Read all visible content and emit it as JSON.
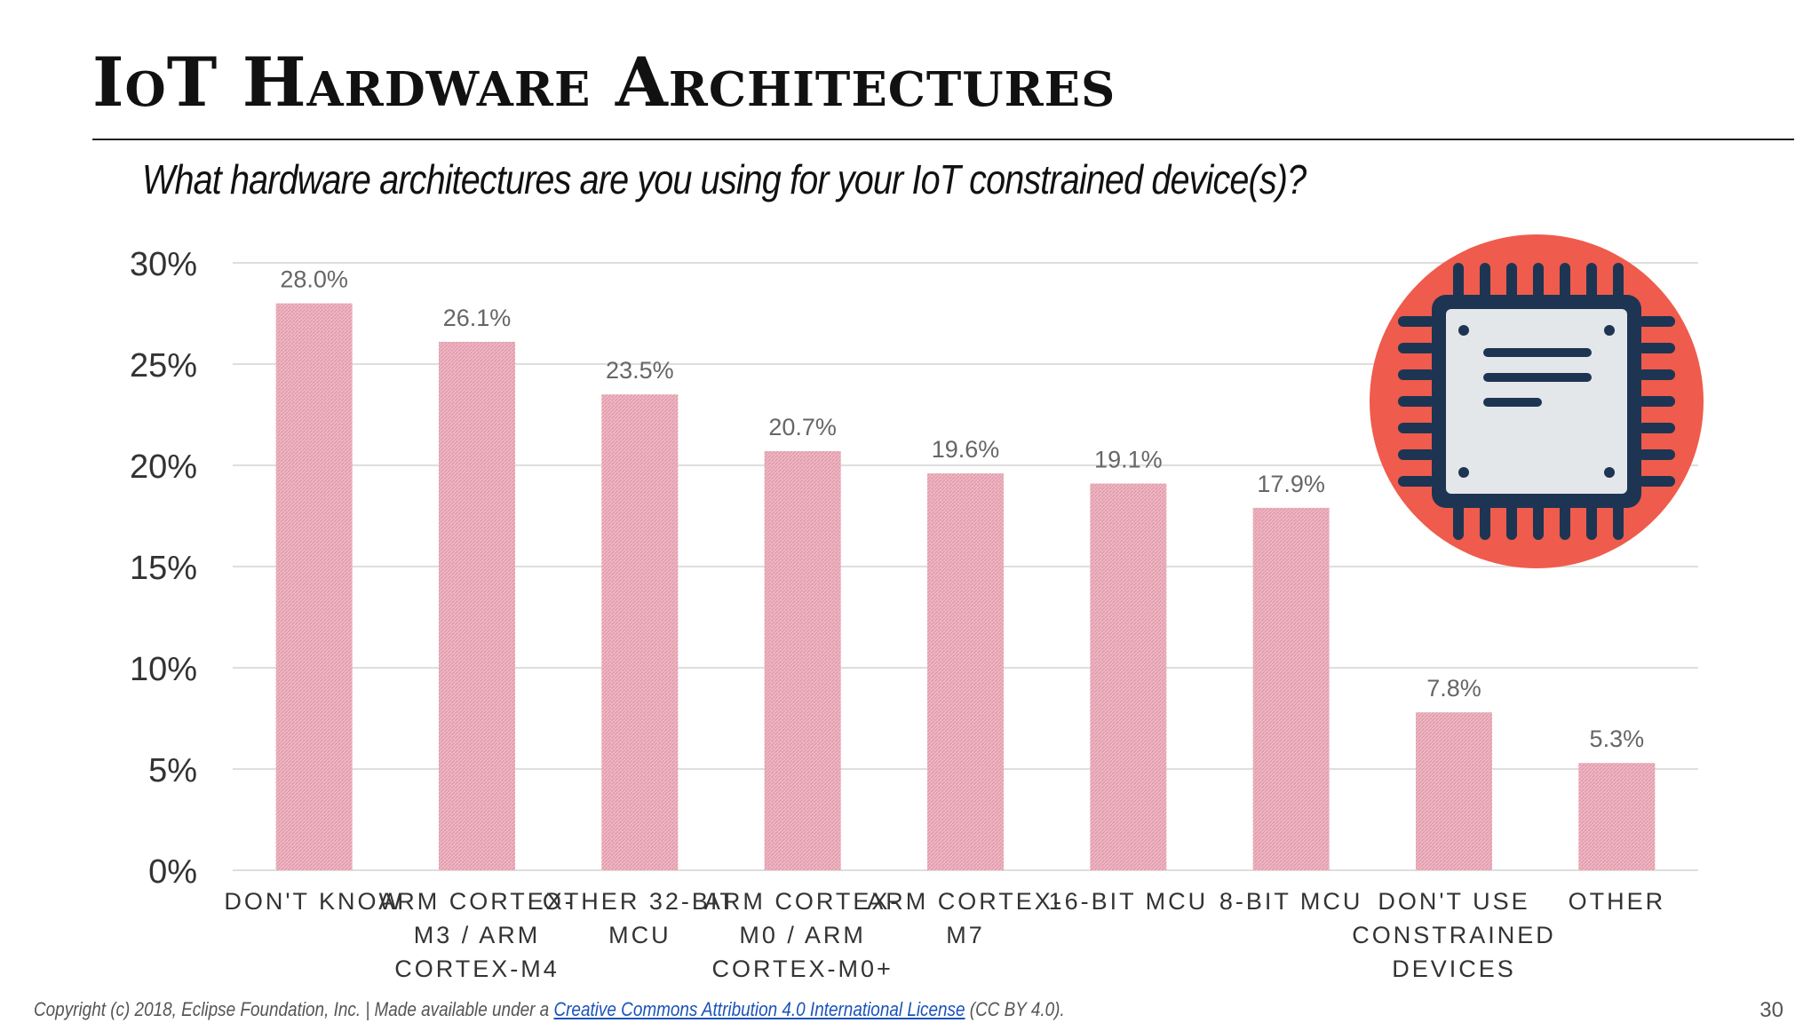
{
  "slide": {
    "title": "IoT Hardware Architectures",
    "subtitle": "What hardware architectures are you using for your IoT constrained device(s)?",
    "page_number": "30"
  },
  "footer": {
    "prefix": "Copyright (c) 2018, Eclipse Foundation, Inc. | Made available under a ",
    "link_text": "Creative Commons Attribution 4.0 International License",
    "suffix": " (CC BY 4.0)."
  },
  "icon": {
    "name": "microchip-icon",
    "circle_color": "#ef5b4c",
    "chip_color": "#1d3553",
    "die_color": "#e4e7ea"
  },
  "colors": {
    "bar": "#efb8c4",
    "bar_hatch": "#e09aaa",
    "grid": "#dedede",
    "axis_text": "#333333",
    "label_text": "#666666"
  },
  "chart_data": {
    "type": "bar",
    "categories": [
      [
        "DON'T KNOW"
      ],
      [
        "ARM CORTEX-",
        "M3 / ARM",
        "CORTEX-M4"
      ],
      [
        "OTHER 32-BIT",
        "MCU"
      ],
      [
        "ARM CORTEX-",
        "M0 / ARM",
        "CORTEX-M0+"
      ],
      [
        "ARM CORTEX-",
        "M7"
      ],
      [
        "16-BIT MCU"
      ],
      [
        "8-BIT MCU"
      ],
      [
        "DON'T USE",
        "CONSTRAINED",
        "DEVICES"
      ],
      [
        "OTHER"
      ]
    ],
    "values": [
      28.0,
      26.1,
      23.5,
      20.7,
      19.6,
      19.1,
      17.9,
      7.8,
      5.3
    ],
    "data_labels": [
      "28.0%",
      "26.1%",
      "23.5%",
      "20.7%",
      "19.6%",
      "19.1%",
      "17.9%",
      "7.8%",
      "5.3%"
    ],
    "yticks": [
      0,
      5,
      10,
      15,
      20,
      25,
      30
    ],
    "ytick_labels": [
      "0%",
      "5%",
      "10%",
      "15%",
      "20%",
      "25%",
      "30%"
    ],
    "ylim": [
      0,
      30
    ],
    "grid": true,
    "legend": "none"
  }
}
